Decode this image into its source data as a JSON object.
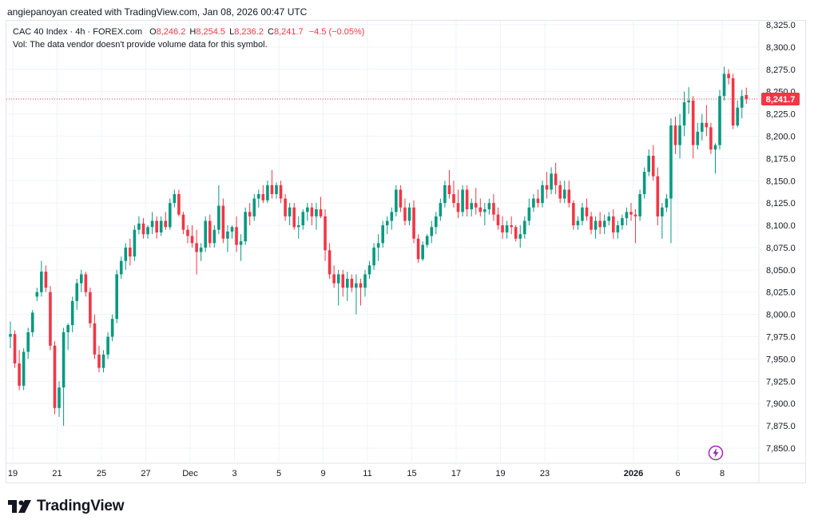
{
  "header": {
    "created_by": "angiepanoyan created with TradingView.com, Jan 08, 2026 00:47 UTC"
  },
  "legend": {
    "symbol": "CAC 40 Index · 4h · FOREX.com",
    "o_label": "O",
    "o_value": "8,246.2",
    "h_label": "H",
    "h_value": "8,254.5",
    "l_label": "L",
    "l_value": "8,236.2",
    "c_label": "C",
    "c_value": "8,241.7",
    "change": "−4.5 (−0.05%)",
    "vol_note": "Vol: The data vendor doesn't provide volume data for this symbol."
  },
  "logo": {
    "text": "TradingView"
  },
  "colors": {
    "up": "#089981",
    "down": "#f23645",
    "grid": "#f0f3fa",
    "text": "#131722",
    "axis_text": "#131722"
  },
  "chart_data": {
    "type": "candlestick",
    "title": "CAC 40 Index · 4h · FOREX.com",
    "last_price": 8241.7,
    "last_price_label": "8,241.7",
    "ylim": [
      7835,
      8335
    ],
    "y_ticks": [
      "8,325.0",
      "8,300.0",
      "8,275.0",
      "8,250.0",
      "8,225.0",
      "8,200.0",
      "8,175.0",
      "8,150.0",
      "8,125.0",
      "8,100.0",
      "8,075.0",
      "8,050.0",
      "8,025.0",
      "8,000.0",
      "7,975.0",
      "7,950.0",
      "7,925.0",
      "7,900.0",
      "7,875.0",
      "7,850.0"
    ],
    "x_ticks": [
      {
        "label": "19",
        "bar": 0
      },
      {
        "label": "21",
        "bar": 10
      },
      {
        "label": "25",
        "bar": 20
      },
      {
        "label": "27",
        "bar": 30
      },
      {
        "label": "Dec",
        "bar": 40
      },
      {
        "label": "3",
        "bar": 50
      },
      {
        "label": "5",
        "bar": 60
      },
      {
        "label": "9",
        "bar": 70
      },
      {
        "label": "11",
        "bar": 80
      },
      {
        "label": "15",
        "bar": 90
      },
      {
        "label": "17",
        "bar": 100
      },
      {
        "label": "19",
        "bar": 110
      },
      {
        "label": "23",
        "bar": 120
      },
      {
        "label": "2026",
        "bar": 140,
        "bold": true
      },
      {
        "label": "6",
        "bar": 150
      },
      {
        "label": "8",
        "bar": 160
      }
    ],
    "ohlc": [
      [
        7975,
        7992,
        7962,
        7978
      ],
      [
        7978,
        7982,
        7940,
        7945
      ],
      [
        7945,
        7960,
        7915,
        7920
      ],
      [
        7920,
        7962,
        7915,
        7958
      ],
      [
        7958,
        7985,
        7950,
        7980
      ],
      [
        7980,
        8005,
        7975,
        8002
      ],
      [
        8020,
        8030,
        8015,
        8025
      ],
      [
        8025,
        8060,
        8020,
        8048
      ],
      [
        8048,
        8055,
        8025,
        8030
      ],
      [
        8025,
        8032,
        7960,
        7965
      ],
      [
        7965,
        7970,
        7888,
        7895
      ],
      [
        7895,
        7925,
        7885,
        7918
      ],
      [
        7918,
        7985,
        7875,
        7980
      ],
      [
        7980,
        7990,
        7960,
        7988
      ],
      [
        7988,
        8020,
        7980,
        8015
      ],
      [
        8015,
        8040,
        8005,
        8035
      ],
      [
        8035,
        8050,
        8025,
        8045
      ],
      [
        8045,
        8048,
        8020,
        8025
      ],
      [
        8025,
        8030,
        7985,
        7990
      ],
      [
        7990,
        8000,
        7950,
        7955
      ],
      [
        7955,
        7965,
        7935,
        7940
      ],
      [
        7940,
        7960,
        7935,
        7955
      ],
      [
        7955,
        7980,
        7950,
        7975
      ],
      [
        7975,
        8000,
        7970,
        7995
      ],
      [
        7995,
        8050,
        7990,
        8045
      ],
      [
        8045,
        8065,
        8040,
        8060
      ],
      [
        8060,
        8080,
        8050,
        8075
      ],
      [
        8075,
        8085,
        8055,
        8065
      ],
      [
        8065,
        8100,
        8060,
        8095
      ],
      [
        8095,
        8110,
        8090,
        8102
      ],
      [
        8102,
        8108,
        8085,
        8090
      ],
      [
        8090,
        8100,
        8085,
        8098
      ],
      [
        8098,
        8115,
        8090,
        8105
      ],
      [
        8105,
        8110,
        8085,
        8092
      ],
      [
        8092,
        8110,
        8088,
        8105
      ],
      [
        8105,
        8115,
        8095,
        8098
      ],
      [
        8098,
        8130,
        8095,
        8125
      ],
      [
        8125,
        8140,
        8120,
        8135
      ],
      [
        8135,
        8140,
        8110,
        8112
      ],
      [
        8112,
        8115,
        8090,
        8095
      ],
      [
        8095,
        8100,
        8080,
        8088
      ],
      [
        8088,
        8100,
        8075,
        8080
      ],
      [
        8080,
        8095,
        8045,
        8070
      ],
      [
        8070,
        8080,
        8060,
        8075
      ],
      [
        8075,
        8110,
        8070,
        8105
      ],
      [
        8105,
        8112,
        8075,
        8080
      ],
      [
        8080,
        8100,
        8075,
        8095
      ],
      [
        8095,
        8145,
        8090,
        8122
      ],
      [
        8122,
        8130,
        8080,
        8085
      ],
      [
        8085,
        8100,
        8070,
        8093
      ],
      [
        8093,
        8100,
        8085,
        8098
      ],
      [
        8098,
        8110,
        8070,
        8078
      ],
      [
        8078,
        8090,
        8060,
        8082
      ],
      [
        8082,
        8120,
        8078,
        8115
      ],
      [
        8115,
        8125,
        8100,
        8110
      ],
      [
        8110,
        8135,
        8105,
        8130
      ],
      [
        8130,
        8140,
        8120,
        8135
      ],
      [
        8135,
        8145,
        8125,
        8128
      ],
      [
        8128,
        8150,
        8125,
        8145
      ],
      [
        8145,
        8162,
        8130,
        8135
      ],
      [
        8135,
        8148,
        8130,
        8145
      ],
      [
        8145,
        8150,
        8125,
        8130
      ],
      [
        8130,
        8135,
        8105,
        8110
      ],
      [
        8110,
        8125,
        8100,
        8120
      ],
      [
        8120,
        8125,
        8095,
        8098
      ],
      [
        8098,
        8110,
        8085,
        8100
      ],
      [
        8100,
        8118,
        8095,
        8115
      ],
      [
        8115,
        8125,
        8105,
        8120
      ],
      [
        8120,
        8125,
        8100,
        8110
      ],
      [
        8110,
        8125,
        8095,
        8118
      ],
      [
        8118,
        8132,
        8108,
        8110
      ],
      [
        8110,
        8118,
        8060,
        8072
      ],
      [
        8072,
        8080,
        8040,
        8045
      ],
      [
        8045,
        8055,
        8030,
        8035
      ],
      [
        8035,
        8050,
        8010,
        8045
      ],
      [
        8045,
        8050,
        8020,
        8030
      ],
      [
        8030,
        8048,
        8015,
        8040
      ],
      [
        8040,
        8045,
        8025,
        8030
      ],
      [
        8030,
        8045,
        8000,
        8035
      ],
      [
        8035,
        8040,
        8010,
        8030
      ],
      [
        8030,
        8050,
        8020,
        8045
      ],
      [
        8045,
        8060,
        8040,
        8055
      ],
      [
        8055,
        8080,
        8050,
        8075
      ],
      [
        8075,
        8090,
        8060,
        8080
      ],
      [
        8080,
        8105,
        8075,
        8100
      ],
      [
        8100,
        8110,
        8090,
        8105
      ],
      [
        8105,
        8120,
        8095,
        8115
      ],
      [
        8115,
        8145,
        8110,
        8140
      ],
      [
        8140,
        8145,
        8115,
        8120
      ],
      [
        8120,
        8130,
        8100,
        8105
      ],
      [
        8105,
        8125,
        8100,
        8120
      ],
      [
        8120,
        8128,
        8080,
        8085
      ],
      [
        8085,
        8090,
        8058,
        8062
      ],
      [
        8062,
        8082,
        8060,
        8078
      ],
      [
        8078,
        8090,
        8075,
        8088
      ],
      [
        8088,
        8105,
        8080,
        8098
      ],
      [
        8098,
        8115,
        8090,
        8110
      ],
      [
        8110,
        8130,
        8105,
        8125
      ],
      [
        8125,
        8150,
        8120,
        8145
      ],
      [
        8145,
        8162,
        8130,
        8135
      ],
      [
        8135,
        8150,
        8120,
        8125
      ],
      [
        8125,
        8140,
        8108,
        8115
      ],
      [
        8115,
        8145,
        8110,
        8140
      ],
      [
        8140,
        8145,
        8110,
        8118
      ],
      [
        8118,
        8130,
        8110,
        8125
      ],
      [
        8125,
        8142,
        8112,
        8120
      ],
      [
        8120,
        8130,
        8110,
        8115
      ],
      [
        8115,
        8125,
        8100,
        8118
      ],
      [
        8118,
        8130,
        8112,
        8125
      ],
      [
        8125,
        8135,
        8105,
        8112
      ],
      [
        8112,
        8120,
        8095,
        8100
      ],
      [
        8100,
        8110,
        8085,
        8092
      ],
      [
        8092,
        8105,
        8085,
        8100
      ],
      [
        8100,
        8110,
        8090,
        8098
      ],
      [
        8098,
        8100,
        8082,
        8085
      ],
      [
        8085,
        8100,
        8075,
        8090
      ],
      [
        8090,
        8110,
        8085,
        8105
      ],
      [
        8105,
        8130,
        8100,
        8120
      ],
      [
        8120,
        8135,
        8115,
        8130
      ],
      [
        8130,
        8140,
        8120,
        8125
      ],
      [
        8125,
        8150,
        8120,
        8145
      ],
      [
        8145,
        8160,
        8130,
        8140
      ],
      [
        8140,
        8165,
        8135,
        8158
      ],
      [
        8158,
        8170,
        8135,
        8145
      ],
      [
        8145,
        8150,
        8125,
        8130
      ],
      [
        8130,
        8150,
        8125,
        8140
      ],
      [
        8140,
        8150,
        8120,
        8125
      ],
      [
        8125,
        8128,
        8095,
        8100
      ],
      [
        8100,
        8110,
        8095,
        8105
      ],
      [
        8105,
        8125,
        8100,
        8120
      ],
      [
        8120,
        8130,
        8105,
        8110
      ],
      [
        8110,
        8115,
        8090,
        8095
      ],
      [
        8095,
        8110,
        8085,
        8105
      ],
      [
        8105,
        8115,
        8090,
        8098
      ],
      [
        8098,
        8112,
        8090,
        8105
      ],
      [
        8105,
        8115,
        8100,
        8110
      ],
      [
        8110,
        8118,
        8085,
        8092
      ],
      [
        8092,
        8105,
        8085,
        8100
      ],
      [
        8100,
        8112,
        8095,
        8108
      ],
      [
        8108,
        8120,
        8100,
        8115
      ],
      [
        8115,
        8125,
        8105,
        8112
      ],
      [
        8112,
        8118,
        8080,
        8110
      ],
      [
        8110,
        8140,
        8105,
        8135
      ],
      [
        8135,
        8165,
        8130,
        8160
      ],
      [
        8160,
        8185,
        8155,
        8178
      ],
      [
        8178,
        8190,
        8150,
        8155
      ],
      [
        8155,
        8165,
        8100,
        8110
      ],
      [
        8110,
        8125,
        8085,
        8120
      ],
      [
        8120,
        8135,
        8115,
        8130
      ],
      [
        8130,
        8220,
        8080,
        8212
      ],
      [
        8212,
        8222,
        8180,
        8190
      ],
      [
        8190,
        8225,
        8175,
        8212
      ],
      [
        8212,
        8250,
        8200,
        8238
      ],
      [
        8238,
        8255,
        8225,
        8240
      ],
      [
        8240,
        8245,
        8175,
        8190
      ],
      [
        8190,
        8215,
        8185,
        8205
      ],
      [
        8205,
        8225,
        8195,
        8215
      ],
      [
        8215,
        8235,
        8200,
        8210
      ],
      [
        8210,
        8215,
        8180,
        8185
      ],
      [
        8185,
        8192,
        8158,
        8190
      ],
      [
        8190,
        8252,
        8185,
        8245
      ],
      [
        8245,
        8278,
        8240,
        8270
      ],
      [
        8270,
        8275,
        8258,
        8265
      ],
      [
        8265,
        8270,
        8208,
        8212
      ],
      [
        8212,
        8240,
        8210,
        8232
      ],
      [
        8232,
        8252,
        8220,
        8245
      ],
      [
        8246.2,
        8254.5,
        8236.2,
        8241.7
      ]
    ]
  }
}
